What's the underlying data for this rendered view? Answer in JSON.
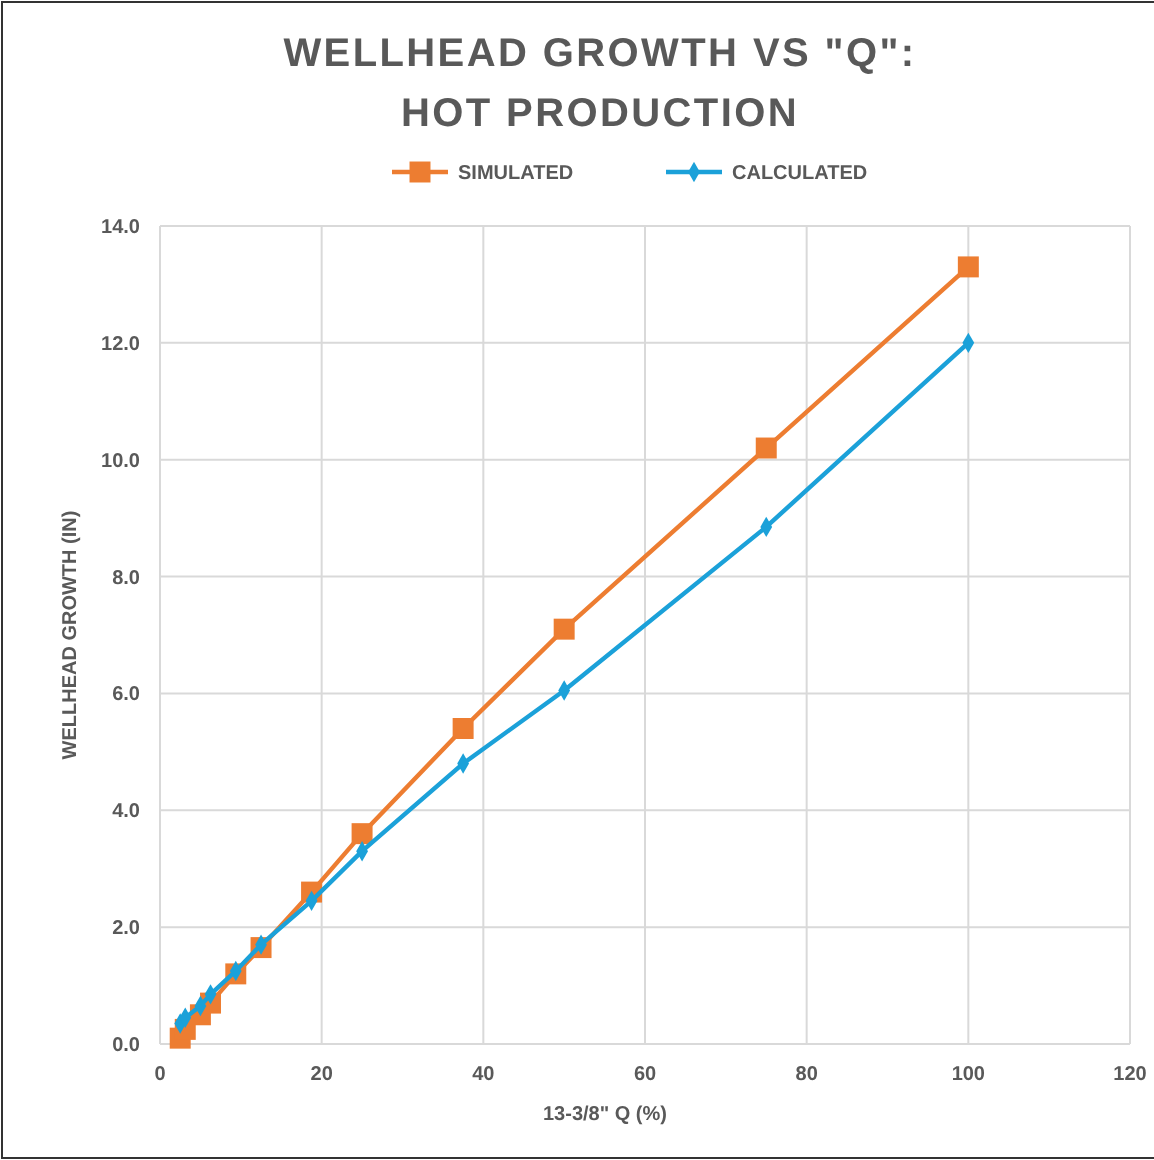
{
  "chart_data": {
    "type": "line",
    "title": "WELLHEAD GROWTH VS \"Q\":\nHOT PRODUCTION",
    "xlabel": "13-3/8\" Q (%)",
    "ylabel": "WELLHEAD GROWTH (IN)",
    "x": [
      2.5,
      3.125,
      5,
      6.25,
      9.375,
      12.5,
      18.75,
      25,
      37.5,
      50,
      75,
      100
    ],
    "series": [
      {
        "name": "SIMULATED",
        "color": "#ed7d31",
        "marker": "square",
        "values": [
          0.1,
          0.25,
          0.5,
          0.7,
          1.2,
          1.65,
          2.6,
          3.6,
          5.4,
          7.1,
          10.2,
          13.3
        ]
      },
      {
        "name": "CALCULATED",
        "color": "#1ba1d9",
        "marker": "diamond",
        "values": [
          0.35,
          0.45,
          0.65,
          0.85,
          1.25,
          1.7,
          2.45,
          3.3,
          4.8,
          6.05,
          8.85,
          12.0
        ]
      }
    ],
    "xlim": [
      0,
      120
    ],
    "xticks": [
      0,
      20,
      40,
      60,
      80,
      100,
      120
    ],
    "ylim": [
      0,
      14
    ],
    "yticks": [
      {
        "value": 0,
        "label": "0.0"
      },
      {
        "value": 2,
        "label": "2.0"
      },
      {
        "value": 4,
        "label": "4.0"
      },
      {
        "value": 6,
        "label": "6.0"
      },
      {
        "value": 8,
        "label": "8.0"
      },
      {
        "value": 10,
        "label": "10.0"
      },
      {
        "value": 12,
        "label": "12.0"
      },
      {
        "value": 14,
        "label": "14.0"
      }
    ],
    "grid": true,
    "legend": "top"
  }
}
